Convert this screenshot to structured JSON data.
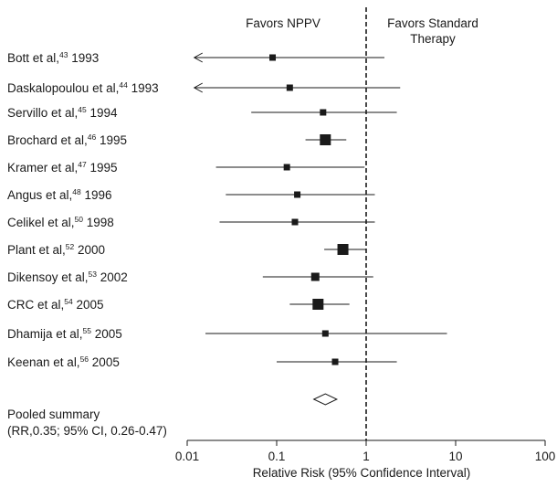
{
  "chart_data": {
    "type": "forest",
    "xscale": "log",
    "xlim": [
      0.01,
      100
    ],
    "xticks": [
      "0.01",
      "0.1",
      "1",
      "10",
      "100"
    ],
    "xlabel": "Relative Risk (95% Confidence Interval)",
    "reference_line": 1,
    "header_left": "Favors NPPV",
    "header_right_line1": "Favors Standard",
    "header_right_line2": "Therapy",
    "studies": [
      {
        "author": "Bott et al,",
        "ref": "43",
        "year": " 1993",
        "rr": 0.09,
        "lo": 0.012,
        "hi": 1.6,
        "arrow_left": true,
        "size": "small"
      },
      {
        "author": "Daskalopoulou et al,",
        "ref": "44",
        "year": " 1993",
        "rr": 0.14,
        "lo": 0.012,
        "hi": 2.4,
        "arrow_left": true,
        "size": "small"
      },
      {
        "author": "Servillo et al,",
        "ref": "45",
        "year": " 1994",
        "rr": 0.33,
        "lo": 0.052,
        "hi": 2.2,
        "arrow_left": false,
        "size": "small"
      },
      {
        "author": "Brochard et al,",
        "ref": "46",
        "year": " 1995",
        "rr": 0.35,
        "lo": 0.21,
        "hi": 0.6,
        "arrow_left": false,
        "size": "large"
      },
      {
        "author": "Kramer et al,",
        "ref": "47",
        "year": " 1995",
        "rr": 0.13,
        "lo": 0.021,
        "hi": 0.96,
        "arrow_left": false,
        "size": "small"
      },
      {
        "author": "Angus et al,",
        "ref": "48",
        "year": " 1996",
        "rr": 0.17,
        "lo": 0.027,
        "hi": 1.25,
        "arrow_left": false,
        "size": "small"
      },
      {
        "author": "Celikel et al,",
        "ref": "50",
        "year": " 1998",
        "rr": 0.16,
        "lo": 0.023,
        "hi": 1.25,
        "arrow_left": false,
        "size": "small"
      },
      {
        "author": "Plant et al,",
        "ref": "52",
        "year": " 2000",
        "rr": 0.55,
        "lo": 0.34,
        "hi": 1.0,
        "arrow_left": false,
        "size": "large"
      },
      {
        "author": "Dikensoy et al,",
        "ref": "53",
        "year": " 2002",
        "rr": 0.27,
        "lo": 0.07,
        "hi": 1.2,
        "arrow_left": false,
        "size": "medium"
      },
      {
        "author": "CRC et al,",
        "ref": "54",
        "year": " 2005",
        "rr": 0.29,
        "lo": 0.14,
        "hi": 0.65,
        "arrow_left": false,
        "size": "large"
      },
      {
        "author": "Dhamija et al,",
        "ref": "55",
        "year": " 2005",
        "rr": 0.35,
        "lo": 0.016,
        "hi": 8.0,
        "arrow_left": false,
        "size": "small"
      },
      {
        "author": "Keenan et al,",
        "ref": "56",
        "year": " 2005",
        "rr": 0.45,
        "lo": 0.1,
        "hi": 2.2,
        "arrow_left": false,
        "size": "small"
      }
    ],
    "pooled": {
      "label_line1": "Pooled summary",
      "label_line2": "(RR,0.35; 95% CI, 0.26-0.47)",
      "rr": 0.35,
      "lo": 0.26,
      "hi": 0.47
    }
  }
}
